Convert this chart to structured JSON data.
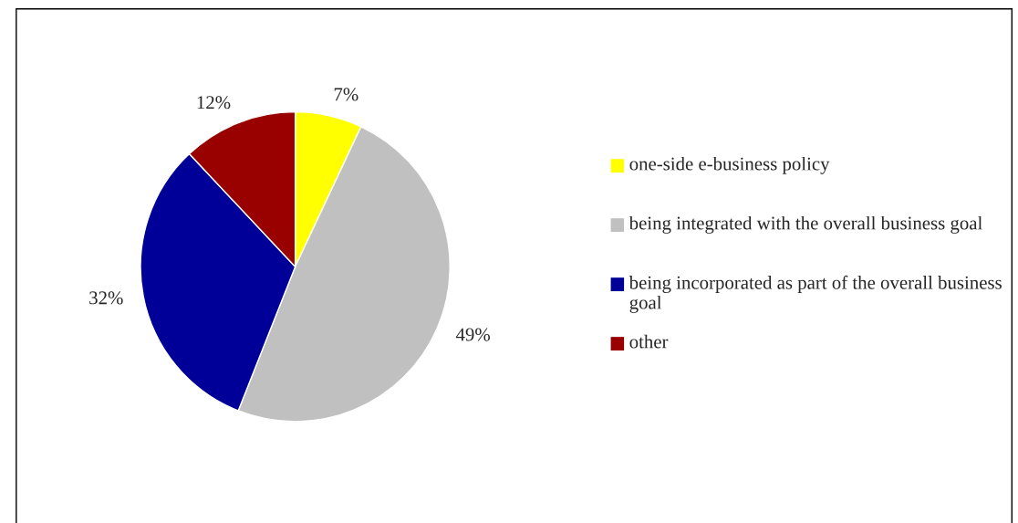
{
  "chart_data": {
    "type": "pie",
    "categories": [
      "one-side e-business policy",
      "being integrated with the overall business goal",
      "being incorporated as part of the overall business goal",
      "other"
    ],
    "values": [
      7,
      49,
      32,
      12
    ],
    "colors": [
      "#ffff00",
      "#c0c0c0",
      "#000099",
      "#990000"
    ],
    "value_labels": [
      "7%",
      "49%",
      "32%",
      "12%"
    ],
    "legend": "right"
  }
}
